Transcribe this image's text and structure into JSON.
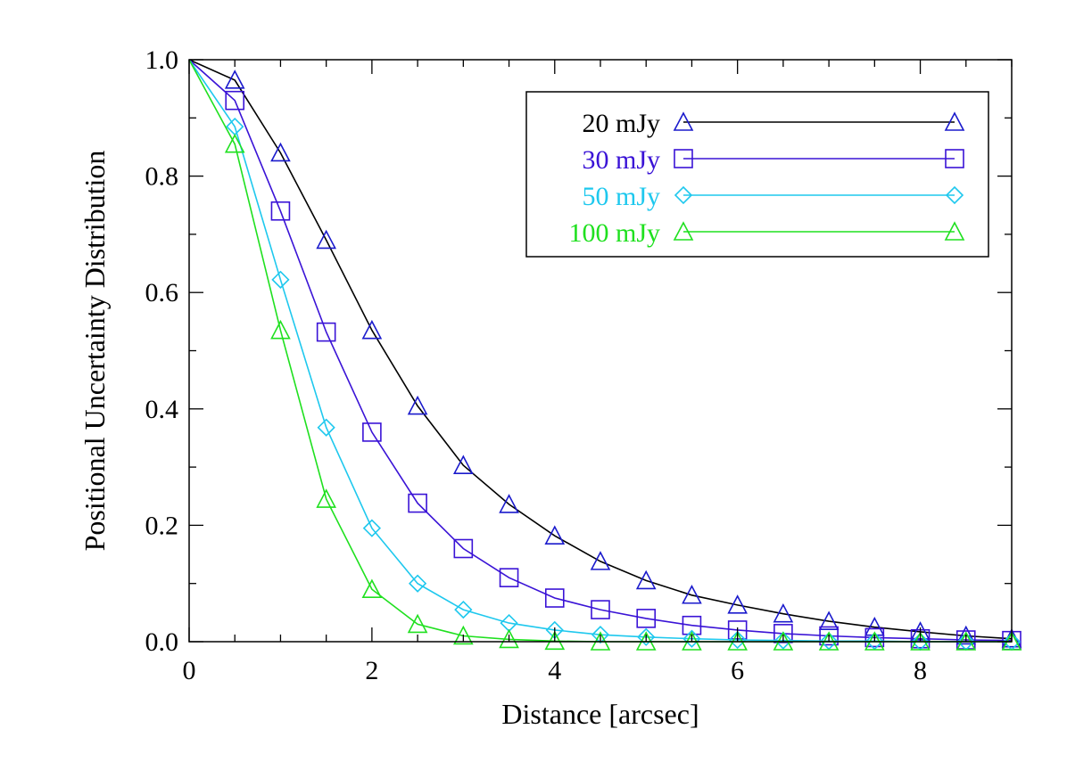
{
  "chart_data": {
    "type": "line",
    "title": "",
    "xlabel": "Distance [arcsec]",
    "ylabel": "Positional Uncertainty Distribution",
    "xlim": [
      0,
      9
    ],
    "ylim": [
      0,
      1
    ],
    "grid": false,
    "legend_position": "top-right",
    "x_ticks": [
      0,
      2,
      4,
      6,
      8
    ],
    "x_tick_labels": [
      "0",
      "2",
      "4",
      "6",
      "8"
    ],
    "y_ticks": [
      0,
      0.2,
      0.4,
      0.6,
      0.8,
      1.0
    ],
    "y_tick_labels": [
      "0.0",
      "0.2",
      "0.4",
      "0.6",
      "0.8",
      "1.0"
    ],
    "x": [
      0,
      0.5,
      1,
      1.5,
      2,
      2.5,
      3,
      3.5,
      4,
      4.5,
      5,
      5.5,
      6,
      6.5,
      7,
      7.5,
      8,
      8.5,
      9
    ],
    "series": [
      {
        "name": "20 mJy",
        "label": "20 mJy",
        "color": "#000000",
        "marker": "triangle",
        "marker_color": "#1a1acc",
        "values": [
          1.0,
          0.965,
          0.84,
          0.69,
          0.535,
          0.405,
          0.303,
          0.236,
          0.182,
          0.138,
          0.105,
          0.08,
          0.063,
          0.048,
          0.035,
          0.025,
          0.017,
          0.01,
          0.005
        ]
      },
      {
        "name": "30 mJy",
        "label": "30 mJy",
        "color": "#3a13d6",
        "marker": "square",
        "marker_color": "#3a13d6",
        "values": [
          1.0,
          0.93,
          0.74,
          0.532,
          0.36,
          0.238,
          0.16,
          0.11,
          0.075,
          0.055,
          0.04,
          0.028,
          0.02,
          0.014,
          0.01,
          0.007,
          0.005,
          0.003,
          0.002
        ]
      },
      {
        "name": "50 mJy",
        "label": "50 mJy",
        "color": "#1ec8ee",
        "marker": "diamond",
        "marker_color": "#1ec8ee",
        "values": [
          1.0,
          0.885,
          0.622,
          0.368,
          0.195,
          0.1,
          0.055,
          0.032,
          0.02,
          0.012,
          0.008,
          0.005,
          0.003,
          0.002,
          0.001,
          0.001,
          0.0,
          0.0,
          0.0
        ]
      },
      {
        "name": "100 mJy",
        "label": "100 mJy",
        "color": "#1fe01f",
        "marker": "triangle",
        "marker_color": "#1fe01f",
        "values": [
          1.0,
          0.855,
          0.535,
          0.245,
          0.09,
          0.03,
          0.01,
          0.004,
          0.001,
          0.0,
          0.0,
          0.0,
          0.0,
          0.0,
          0.0,
          0.0,
          0.0,
          0.0,
          0.0
        ]
      }
    ]
  }
}
